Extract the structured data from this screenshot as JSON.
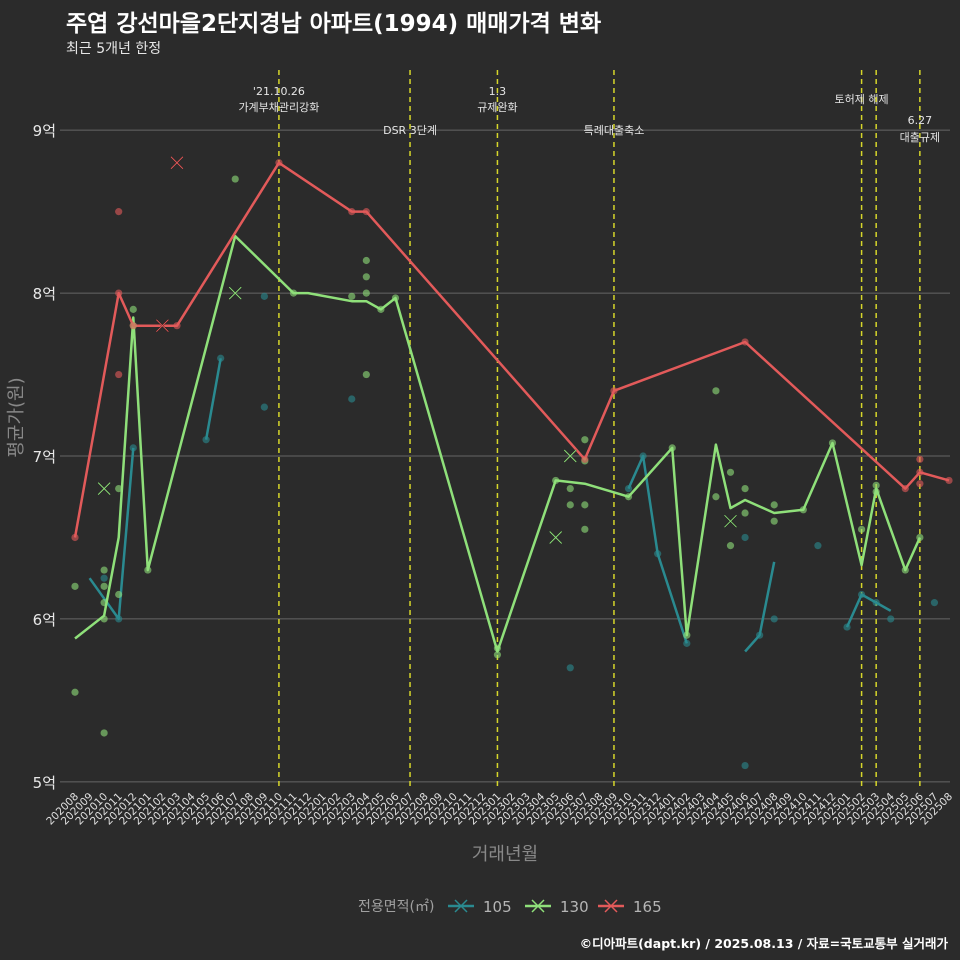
{
  "title": "주엽 강선마을2단지경남 아파트(1994) 매매가격 변화",
  "subtitle": "최근 5개년 한정",
  "caption": "©디아파트(dapt.kr) / 2025.08.13 / 자료=국토교통부 실거래가",
  "colors": {
    "background": "#2b2b2b",
    "grid": "#666666",
    "event_line": "#d6d62a",
    "s105": "#2a8a90",
    "s130": "#8fe07a",
    "s165": "#e25a5a"
  },
  "chart_data": {
    "type": "line",
    "xlabel": "거래년월",
    "ylabel": "평균가(원)",
    "ylim": [
      4.95,
      9.4
    ],
    "y_ticks": [
      5,
      6,
      7,
      8,
      9
    ],
    "y_tick_labels": [
      "5억",
      "6억",
      "7억",
      "8억",
      "9억"
    ],
    "grid": "horizontal",
    "legend": {
      "position": "bottom",
      "title": "전용면적(㎡)",
      "labels": [
        "105",
        "130",
        "165"
      ]
    },
    "categories": [
      "202008",
      "202009",
      "202010",
      "202011",
      "202012",
      "202101",
      "202102",
      "202103",
      "202104",
      "202105",
      "202106",
      "202107",
      "202108",
      "202109",
      "202110",
      "202111",
      "202112",
      "202201",
      "202202",
      "202203",
      "202204",
      "202205",
      "202206",
      "202207",
      "202208",
      "202209",
      "202210",
      "202211",
      "202212",
      "202301",
      "202302",
      "202303",
      "202304",
      "202305",
      "202306",
      "202307",
      "202308",
      "202309",
      "202310",
      "202311",
      "202312",
      "202401",
      "202402",
      "202403",
      "202404",
      "202405",
      "202406",
      "202407",
      "202408",
      "202409",
      "202410",
      "202411",
      "202412",
      "202501",
      "202502",
      "202503",
      "202504",
      "202505",
      "202506",
      "202507",
      "202508"
    ],
    "series": [
      {
        "name": "105",
        "key": "s105",
        "lines": [
          [
            [
              "2020.9",
              6.25
            ],
            [
              "2020.11",
              6.0
            ],
            [
              "2020.12",
              7.05
            ]
          ],
          [
            [
              "2021.5",
              7.1
            ],
            [
              "2021.6",
              7.6
            ]
          ],
          [
            [
              "2023.10",
              6.8
            ],
            [
              "2023.11",
              7.0
            ],
            [
              "2023.12",
              6.4
            ],
            [
              "2024.2",
              5.85
            ]
          ],
          [
            [
              "2024.6",
              5.8
            ],
            [
              "2024.7",
              5.9
            ],
            [
              "2024.8",
              6.35
            ]
          ],
          [
            [
              "2025.1",
              5.95
            ],
            [
              "2025.2",
              6.15
            ],
            [
              "2025.3",
              6.1
            ],
            [
              "2025.4",
              6.05
            ]
          ]
        ],
        "points": [
          [
            "2020.10",
            6.25
          ],
          [
            "2020.11",
            6.0
          ],
          [
            "2020.12",
            7.05
          ],
          [
            "2021.5",
            7.1
          ],
          [
            "2021.6",
            7.6
          ],
          [
            "2021.9",
            7.3
          ],
          [
            "2021.9",
            7.98
          ],
          [
            "2022.3",
            7.35
          ],
          [
            "2023.6",
            5.7
          ],
          [
            "2023.10",
            6.8
          ],
          [
            "2023.11",
            7.0
          ],
          [
            "2023.12",
            6.4
          ],
          [
            "2024.2",
            5.85
          ],
          [
            "2024.6",
            5.1
          ],
          [
            "2024.6",
            6.5
          ],
          [
            "2024.7",
            5.9
          ],
          [
            "2024.8",
            6.0
          ],
          [
            "2024.11",
            6.45
          ],
          [
            "2025.1",
            5.95
          ],
          [
            "2025.2",
            6.15
          ],
          [
            "2025.3",
            6.1
          ],
          [
            "2025.4",
            6.0
          ],
          [
            "2025.7",
            6.1
          ]
        ],
        "cancelled": []
      },
      {
        "name": "130",
        "key": "s130",
        "lines": [
          [
            [
              "2020.8",
              5.88
            ],
            [
              "2020.10",
              6.02
            ],
            [
              "2020.11",
              6.5
            ],
            [
              "2020.12",
              7.85
            ],
            [
              "2021.1",
              6.3
            ],
            [
              "2021.7",
              8.35
            ],
            [
              "2021.11",
              8.0
            ],
            [
              "2021.12",
              8.0
            ],
            [
              "2022.3",
              7.95
            ],
            [
              "2022.4",
              7.95
            ],
            [
              "2022.5",
              7.9
            ],
            [
              "2022.6",
              7.97
            ],
            [
              "2023.1",
              5.8
            ],
            [
              "2023.5",
              6.85
            ],
            [
              "2023.7",
              6.83
            ],
            [
              "2023.10",
              6.75
            ],
            [
              "2024.1",
              7.05
            ],
            [
              "2024.2",
              5.9
            ],
            [
              "2024.4",
              7.07
            ],
            [
              "2024.5",
              6.68
            ],
            [
              "2024.6",
              6.73
            ],
            [
              "2024.8",
              6.65
            ],
            [
              "2024.10",
              6.67
            ],
            [
              "2024.12",
              7.08
            ],
            [
              "2025.2",
              6.33
            ],
            [
              "2025.3",
              6.8
            ],
            [
              "2025.5",
              6.3
            ],
            [
              "2025.6",
              6.5
            ]
          ]
        ],
        "points": [
          [
            "2020.8",
            6.2
          ],
          [
            "2020.8",
            5.55
          ],
          [
            "2020.10",
            5.3
          ],
          [
            "2020.10",
            6.0
          ],
          [
            "2020.10",
            6.1
          ],
          [
            "2020.10",
            6.2
          ],
          [
            "2020.10",
            6.3
          ],
          [
            "2020.11",
            6.8
          ],
          [
            "2020.11",
            6.15
          ],
          [
            "2020.12",
            7.9
          ],
          [
            "2020.12",
            7.8
          ],
          [
            "2021.1",
            6.3
          ],
          [
            "2021.7",
            8.7
          ],
          [
            "2021.11",
            8.0
          ],
          [
            "2022.3",
            7.98
          ],
          [
            "2022.4",
            8.2
          ],
          [
            "2022.4",
            8.1
          ],
          [
            "2022.4",
            8.0
          ],
          [
            "2022.4",
            7.5
          ],
          [
            "2022.5",
            7.9
          ],
          [
            "2022.6",
            7.97
          ],
          [
            "2023.1",
            5.78
          ],
          [
            "2023.1",
            5.82
          ],
          [
            "2023.5",
            6.85
          ],
          [
            "2023.6",
            6.8
          ],
          [
            "2023.6",
            6.7
          ],
          [
            "2023.7",
            7.1
          ],
          [
            "2023.7",
            6.97
          ],
          [
            "2023.7",
            6.7
          ],
          [
            "2023.7",
            6.55
          ],
          [
            "2023.10",
            6.75
          ],
          [
            "2024.1",
            7.05
          ],
          [
            "2024.2",
            5.9
          ],
          [
            "2024.4",
            7.4
          ],
          [
            "2024.4",
            6.75
          ],
          [
            "2024.5",
            6.9
          ],
          [
            "2024.5",
            6.45
          ],
          [
            "2024.6",
            6.8
          ],
          [
            "2024.6",
            6.65
          ],
          [
            "2024.8",
            6.6
          ],
          [
            "2024.8",
            6.7
          ],
          [
            "2024.10",
            6.67
          ],
          [
            "2024.12",
            7.08
          ],
          [
            "2025.2",
            6.55
          ],
          [
            "2025.3",
            6.82
          ],
          [
            "2025.3",
            6.78
          ],
          [
            "2025.5",
            6.3
          ],
          [
            "2025.6",
            6.5
          ]
        ],
        "cancelled": [
          [
            "2020.10",
            6.8
          ],
          [
            "2021.7",
            8.0
          ],
          [
            "2023.5",
            6.5
          ],
          [
            "2023.6",
            7.0
          ],
          [
            "2024.5",
            6.6
          ]
        ]
      },
      {
        "name": "165",
        "key": "s165",
        "lines": [
          [
            [
              "2020.8",
              6.5
            ],
            [
              "2020.11",
              8.0
            ],
            [
              "2020.12",
              7.8
            ],
            [
              "2021.3",
              7.8
            ],
            [
              "2021.10",
              8.8
            ],
            [
              "2022.3",
              8.5
            ],
            [
              "2022.4",
              8.5
            ],
            [
              "2023.7",
              6.98
            ],
            [
              "2023.9",
              7.4
            ],
            [
              "2024.6",
              7.7
            ],
            [
              "2025.5",
              6.8
            ],
            [
              "2025.6",
              6.9
            ],
            [
              "2025.8",
              6.85
            ]
          ]
        ],
        "points": [
          [
            "2020.8",
            6.5
          ],
          [
            "2020.11",
            8.5
          ],
          [
            "2020.11",
            7.5
          ],
          [
            "2020.11",
            8.0
          ],
          [
            "2020.12",
            7.8
          ],
          [
            "2021.3",
            7.8
          ],
          [
            "2021.10",
            8.8
          ],
          [
            "2022.3",
            8.5
          ],
          [
            "2022.4",
            8.5
          ],
          [
            "2023.7",
            6.98
          ],
          [
            "2023.9",
            7.4
          ],
          [
            "2024.6",
            7.7
          ],
          [
            "2025.5",
            6.8
          ],
          [
            "2025.6",
            6.98
          ],
          [
            "2025.6",
            6.9
          ],
          [
            "2025.6",
            6.83
          ],
          [
            "2025.8",
            6.85
          ]
        ],
        "cancelled": [
          [
            "2021.2",
            7.8
          ],
          [
            "2021.3",
            8.8
          ]
        ]
      }
    ],
    "events": [
      {
        "at": "2021.10",
        "label": "'21.10.26",
        "label2": "가계부채관리강화",
        "row": "top"
      },
      {
        "at": "2022.7",
        "label": "DSR 3단계",
        "label2": "",
        "row": "mid"
      },
      {
        "at": "2023.1",
        "label": "1.3",
        "label2": "규제완화",
        "row": "top"
      },
      {
        "at": "2023.9",
        "label": "특례대출축소",
        "label2": "",
        "row": "mid"
      },
      {
        "at": "2025.2",
        "label": "토허제 해제",
        "label2": "",
        "row": "top2"
      },
      {
        "at": "2025.3",
        "label": "",
        "label2": "",
        "row": "none"
      },
      {
        "at": "2025.6",
        "label": "6.27",
        "label2": "대출규제",
        "row": "low"
      }
    ]
  }
}
